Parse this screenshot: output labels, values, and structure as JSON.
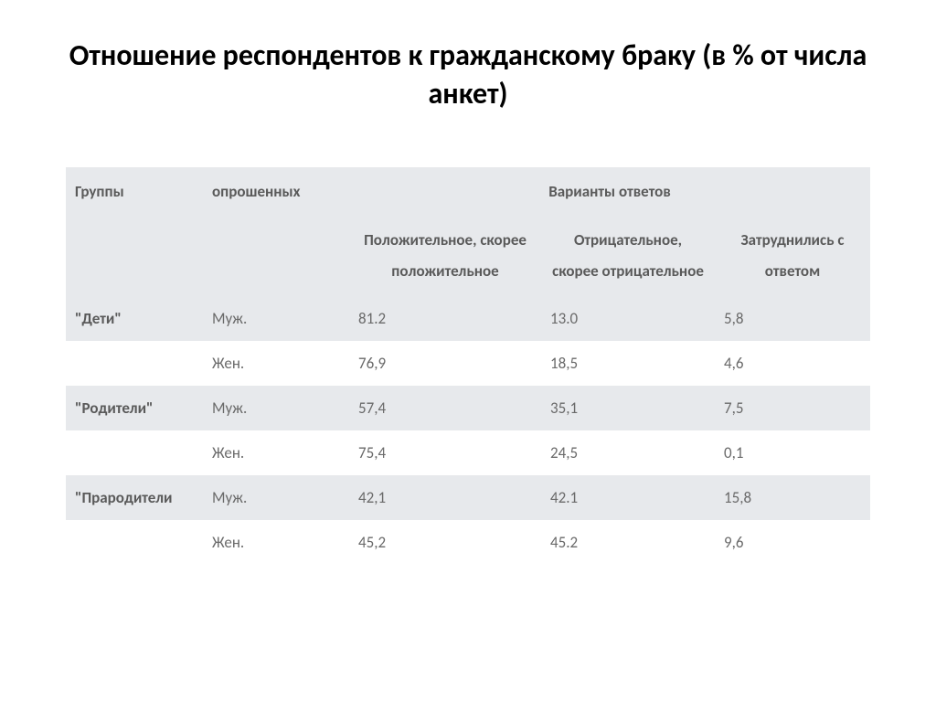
{
  "title": "Отношение респондентов к гражданскому браку (в % от числа анкет)",
  "table": {
    "header_row1": {
      "c1": "Группы",
      "c2": "опрошенных",
      "c3_span": "Варианты ответов"
    },
    "header_row2": {
      "c1": "",
      "c2": "",
      "c3": "Положительное, скорее положительное",
      "c4": "Отрицательное, скорее отрицательное",
      "c5": "Затруднились с ответом"
    },
    "rows": [
      {
        "group": "\"Дети\"",
        "sex": "Муж.",
        "v1": "81.2",
        "v2": "13.0",
        "v3": "5,8",
        "shade": true
      },
      {
        "group": "",
        "sex": "Жен.",
        "v1": "76,9",
        "v2": "18,5",
        "v3": "4,6",
        "shade": false
      },
      {
        "group": "\"Родители\"",
        "sex": "Муж.",
        "v1": "57,4",
        "v2": "35,1",
        "v3": "7,5",
        "shade": true
      },
      {
        "group": "",
        "sex": "Жен.",
        "v1": "75,4",
        "v2": "24,5",
        "v3": "0,1",
        "shade": false
      },
      {
        "group": "\"Прародители",
        "sex": "Муж.",
        "v1": "42,1",
        "v2": "42.1",
        "v3": "15,8",
        "shade": true
      },
      {
        "group": "",
        "sex": "Жен.",
        "v1": "45,2",
        "v2": "45.2",
        "v3": "9,6",
        "shade": false
      }
    ],
    "colors": {
      "header_bg": "#e7e9ec",
      "shade_bg": "#e7e9ec",
      "text": "#5a5a5a",
      "title_color": "#000000",
      "background": "#ffffff"
    },
    "fonts": {
      "title_size_pt": 24,
      "table_size_pt": 13
    }
  }
}
